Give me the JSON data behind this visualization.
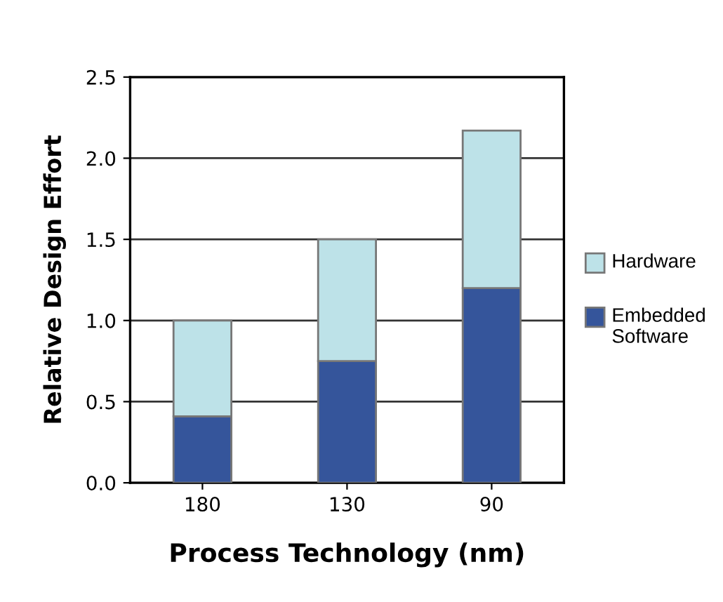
{
  "chart_data": {
    "type": "bar",
    "stacked": true,
    "xlabel": "Process Technology (nm)",
    "ylabel": "Relative Design Effort",
    "categories": [
      "180",
      "130",
      "90"
    ],
    "series": [
      {
        "name": "Embedded Software",
        "color": "#35559b",
        "values": [
          0.41,
          0.75,
          1.2
        ]
      },
      {
        "name": "Hardware",
        "color": "#bde2e8",
        "values": [
          0.59,
          0.75,
          0.97
        ]
      }
    ],
    "ylim": [
      0,
      2.5
    ],
    "yticks": [
      {
        "value": 0,
        "label": "0.0"
      },
      0.5,
      {
        "value": 1,
        "label": "1.0"
      },
      1.5,
      {
        "value": 2,
        "label": "2.0"
      },
      2.5
    ],
    "grid": "y",
    "legend": "right"
  }
}
